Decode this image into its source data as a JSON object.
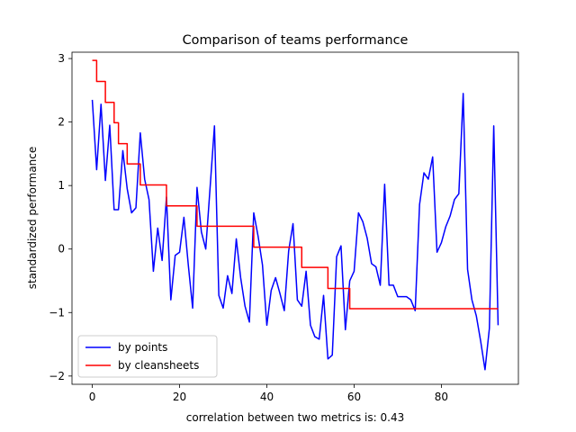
{
  "chart_data": {
    "type": "line",
    "title": "Comparison of teams performance",
    "xlabel": "correlation between two metrics is: 0.43",
    "ylabel": "standardized performance",
    "xlim": [
      -4.65,
      97.65
    ],
    "ylim": [
      -2.13,
      3.1
    ],
    "x_ticks": [
      0,
      20,
      40,
      60,
      80
    ],
    "y_ticks": [
      -2,
      -1,
      0,
      1,
      2,
      3
    ],
    "grid": false,
    "legend_position": "lower-left",
    "series": [
      {
        "name": "by points",
        "color": "#0000ff",
        "x": [
          0,
          1,
          2,
          3,
          4,
          5,
          6,
          7,
          8,
          9,
          10,
          11,
          12,
          13,
          14,
          15,
          16,
          17,
          18,
          19,
          20,
          21,
          22,
          23,
          24,
          25,
          26,
          27,
          28,
          29,
          30,
          31,
          32,
          33,
          34,
          35,
          36,
          37,
          38,
          39,
          40,
          41,
          42,
          43,
          44,
          45,
          46,
          47,
          48,
          49,
          50,
          51,
          52,
          53,
          54,
          55,
          56,
          57,
          58,
          59,
          60,
          61,
          62,
          63,
          64,
          65,
          66,
          67,
          68,
          69,
          70,
          71,
          72,
          73,
          74,
          75,
          76,
          77,
          78,
          79,
          80,
          81,
          82,
          83,
          84,
          85,
          86,
          87,
          88,
          89,
          90,
          91,
          92,
          93
        ],
        "values": [
          2.35,
          1.25,
          2.28,
          1.08,
          1.95,
          0.62,
          0.62,
          1.55,
          0.95,
          0.57,
          0.65,
          1.83,
          1.1,
          0.78,
          -0.35,
          0.33,
          -0.18,
          0.82,
          -0.8,
          -0.1,
          -0.05,
          0.5,
          -0.25,
          -0.93,
          0.97,
          0.27,
          0.0,
          0.97,
          1.94,
          -0.73,
          -0.93,
          -0.42,
          -0.7,
          0.16,
          -0.45,
          -0.9,
          -1.15,
          0.57,
          0.2,
          -0.25,
          -1.2,
          -0.65,
          -0.45,
          -0.7,
          -0.97,
          -0.03,
          0.4,
          -0.8,
          -0.9,
          -0.35,
          -1.2,
          -1.38,
          -1.42,
          -0.73,
          -1.73,
          -1.67,
          -0.12,
          0.05,
          -1.27,
          -0.5,
          -0.35,
          0.57,
          0.43,
          0.17,
          -0.23,
          -0.28,
          -0.57,
          1.02,
          -0.57,
          -0.57,
          -0.75,
          -0.75,
          -0.75,
          -0.8,
          -0.97,
          0.7,
          1.2,
          1.1,
          1.45,
          -0.05,
          0.1,
          0.35,
          0.52,
          0.78,
          0.87,
          2.45,
          -0.32,
          -0.8,
          -1.05,
          -1.45,
          -1.9,
          -1.25,
          1.94,
          -1.2
        ]
      },
      {
        "name": "by cleansheets",
        "color": "#ff0000",
        "x": [
          0,
          1,
          2,
          3,
          4,
          5,
          6,
          7,
          8,
          9,
          10,
          11,
          12,
          13,
          14,
          15,
          16,
          17,
          18,
          19,
          20,
          21,
          22,
          23,
          24,
          25,
          26,
          27,
          28,
          29,
          30,
          31,
          32,
          33,
          34,
          35,
          36,
          37,
          38,
          39,
          40,
          41,
          42,
          43,
          44,
          45,
          46,
          47,
          48,
          49,
          50,
          51,
          52,
          53,
          54,
          55,
          56,
          57,
          58,
          59,
          60,
          61,
          62,
          63,
          64,
          65,
          66,
          67,
          68,
          69,
          70,
          71,
          72,
          73,
          74,
          75,
          76,
          77,
          78,
          79,
          80,
          81,
          82,
          83,
          84,
          85,
          86,
          87,
          88,
          89,
          90,
          91,
          92,
          93
        ],
        "values": [
          2.97,
          2.64,
          2.64,
          2.31,
          2.31,
          1.99,
          1.66,
          1.66,
          1.34,
          1.34,
          1.34,
          1.01,
          1.01,
          1.01,
          1.01,
          1.01,
          1.01,
          0.68,
          0.68,
          0.68,
          0.68,
          0.68,
          0.68,
          0.68,
          0.36,
          0.36,
          0.36,
          0.36,
          0.36,
          0.36,
          0.36,
          0.36,
          0.36,
          0.36,
          0.36,
          0.36,
          0.36,
          0.03,
          0.03,
          0.03,
          0.03,
          0.03,
          0.03,
          0.03,
          0.03,
          0.03,
          0.03,
          0.03,
          -0.29,
          -0.29,
          -0.29,
          -0.29,
          -0.29,
          -0.29,
          -0.62,
          -0.62,
          -0.62,
          -0.62,
          -0.62,
          -0.94,
          -0.94,
          -0.94,
          -0.94,
          -0.94,
          -0.94,
          -0.94,
          -0.94,
          -0.94,
          -0.94,
          -0.94,
          -0.94,
          -0.94,
          -0.94,
          -0.94,
          -0.94,
          -0.94,
          -0.94,
          -0.94,
          -0.94,
          -0.94,
          -0.94,
          -0.94,
          -0.94,
          -0.94,
          -0.94,
          -0.94,
          -0.94,
          -0.94,
          -0.94,
          -0.94,
          -0.94,
          -0.94,
          -0.94,
          -0.94
        ]
      }
    ]
  }
}
